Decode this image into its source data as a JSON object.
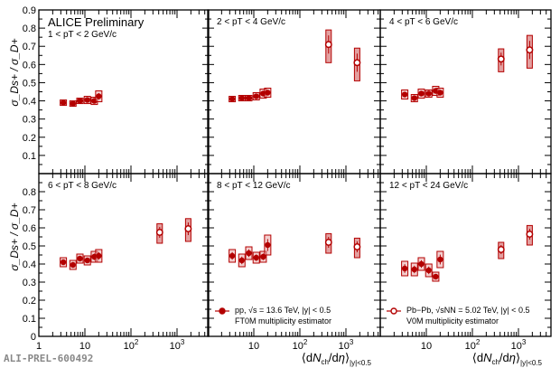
{
  "chart_data": {
    "type": "scatter",
    "title": "ALICE Preliminary",
    "watermark": "ALI-PREL-600492",
    "ylabel": "σ_Ds+ / σ_D+",
    "xlabel": "⟨dNch/dη⟩|y|<0.5",
    "xscale": "log",
    "xlim": [
      1,
      5000
    ],
    "ylim": [
      0,
      0.9
    ],
    "yticks_top": [
      "0.1",
      "0.2",
      "0.3",
      "0.4",
      "0.5",
      "0.6",
      "0.7",
      "0.8",
      "0.9"
    ],
    "yticks_bottom": [
      "0",
      "0.1",
      "0.2",
      "0.3",
      "0.4",
      "0.5",
      "0.6",
      "0.7",
      "0.8"
    ],
    "xticks": [
      "1",
      "10",
      "10^2",
      "10^3"
    ],
    "color": "#b30000",
    "legend": [
      {
        "label": "pp, √s = 13.6 TeV, |y| < 0.5",
        "sub": "FT0M multiplicity estimator",
        "marker": "filled-circle"
      },
      {
        "label": "Pb−Pb, √sNN = 5.02 TeV, |y| < 0.5",
        "sub": "V0M multiplicity estimator",
        "marker": "open-circle"
      }
    ],
    "pp_x": [
      3.4,
      5.5,
      7.8,
      11.3,
      16,
      20
    ],
    "pbpb_x": [
      420,
      1750
    ],
    "panels": [
      {
        "label": "1 < pT < 2 GeV/c",
        "pp": [
          0.39,
          0.385,
          0.4,
          0.405,
          0.4,
          0.425
        ],
        "pp_sys": [
          0.015,
          0.015,
          0.015,
          0.02,
          0.02,
          0.03
        ],
        "pbpb": [],
        "pbpb_sys": []
      },
      {
        "label": "2 < pT < 4 GeV/c",
        "pp": [
          0.41,
          0.415,
          0.415,
          0.425,
          0.44,
          0.445
        ],
        "pp_sys": [
          0.015,
          0.015,
          0.015,
          0.02,
          0.025,
          0.025
        ],
        "pbpb": [
          0.71,
          0.61
        ],
        "pbpb_sys": [
          0.1,
          0.1
        ]
      },
      {
        "label": "4 < pT < 6 GeV/c",
        "pp": [
          0.435,
          0.415,
          0.44,
          0.44,
          0.455,
          0.445
        ],
        "pp_sys": [
          0.025,
          0.02,
          0.025,
          0.02,
          0.025,
          0.025
        ],
        "pbpb": [
          0.63,
          0.68
        ],
        "pbpb_sys": [
          0.07,
          0.1
        ]
      },
      {
        "label": "6 < pT < 8 GeV/c",
        "pp": [
          0.41,
          0.395,
          0.43,
          0.42,
          0.44,
          0.445
        ],
        "pp_sys": [
          0.025,
          0.025,
          0.025,
          0.025,
          0.03,
          0.035
        ],
        "pbpb": [
          0.575,
          0.595
        ],
        "pbpb_sys": [
          0.06,
          0.07
        ]
      },
      {
        "label": "8 < pT < 12 GeV/c",
        "pp": [
          0.445,
          0.42,
          0.46,
          0.435,
          0.44,
          0.505
        ],
        "pp_sys": [
          0.035,
          0.035,
          0.035,
          0.03,
          0.03,
          0.055
        ],
        "pbpb": [
          0.52,
          0.495
        ],
        "pbpb_sys": [
          0.06,
          0.06
        ]
      },
      {
        "label": "12 < pT < 24 GeV/c",
        "pp": [
          0.375,
          0.37,
          0.4,
          0.365,
          0.33,
          0.425
        ],
        "pp_sys": [
          0.04,
          0.035,
          0.035,
          0.035,
          0.025,
          0.045
        ],
        "pbpb": [
          0.48,
          0.565
        ],
        "pbpb_sys": [
          0.05,
          0.06
        ]
      }
    ]
  }
}
